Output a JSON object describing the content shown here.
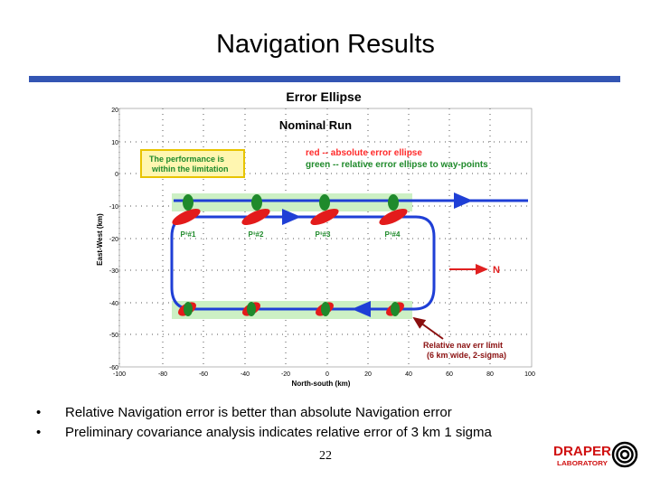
{
  "slide": {
    "title": "Navigation Results",
    "page_number": "22",
    "bullets": [
      "Relative Navigation error is better than absolute Navigation error",
      "Preliminary covariance analysis indicates relative error of 3 km 1 sigma"
    ]
  },
  "figure": {
    "title": "Error Ellipse",
    "subtitle": "Nominal Run",
    "xlabel": "North-south (km)",
    "ylabel": "East-West (km)",
    "xticks": [
      "-100",
      "-80",
      "-60",
      "-40",
      "-20",
      "0",
      "20",
      "40",
      "60",
      "80",
      "100"
    ],
    "yticks": [
      "20",
      "10",
      "0",
      "-10",
      "-20",
      "-30",
      "-40",
      "-50",
      "-60"
    ],
    "legend_red": "red -- absolute error ellipse",
    "legend_green": "green -- relative error ellipse to way-points",
    "callout_line1": "The performance is",
    "callout_line2": "within the limitation",
    "waypoints": [
      "P³#1",
      "P³#2",
      "P³#3",
      "P³#4"
    ],
    "north_label": "N",
    "limit_line1": "Relative nav err limit",
    "limit_line2": "(6 km wide, 2-sigma)"
  },
  "colors": {
    "path": "#1f3fd6",
    "absolute_ellipse": "#e31b1b",
    "relative_ellipse": "#1f8a2b",
    "limit_band": "#ccf0c4",
    "callout_bg": "#fff6b0",
    "callout_border": "#e8c400",
    "legend_red": "#ff2a2a",
    "north_arrow": "#e02020",
    "limit_arrow": "#8a0f0f",
    "rule": "#3355b3"
  },
  "logo": {
    "text": "DRAPER",
    "subtext": "LABORATORY"
  }
}
